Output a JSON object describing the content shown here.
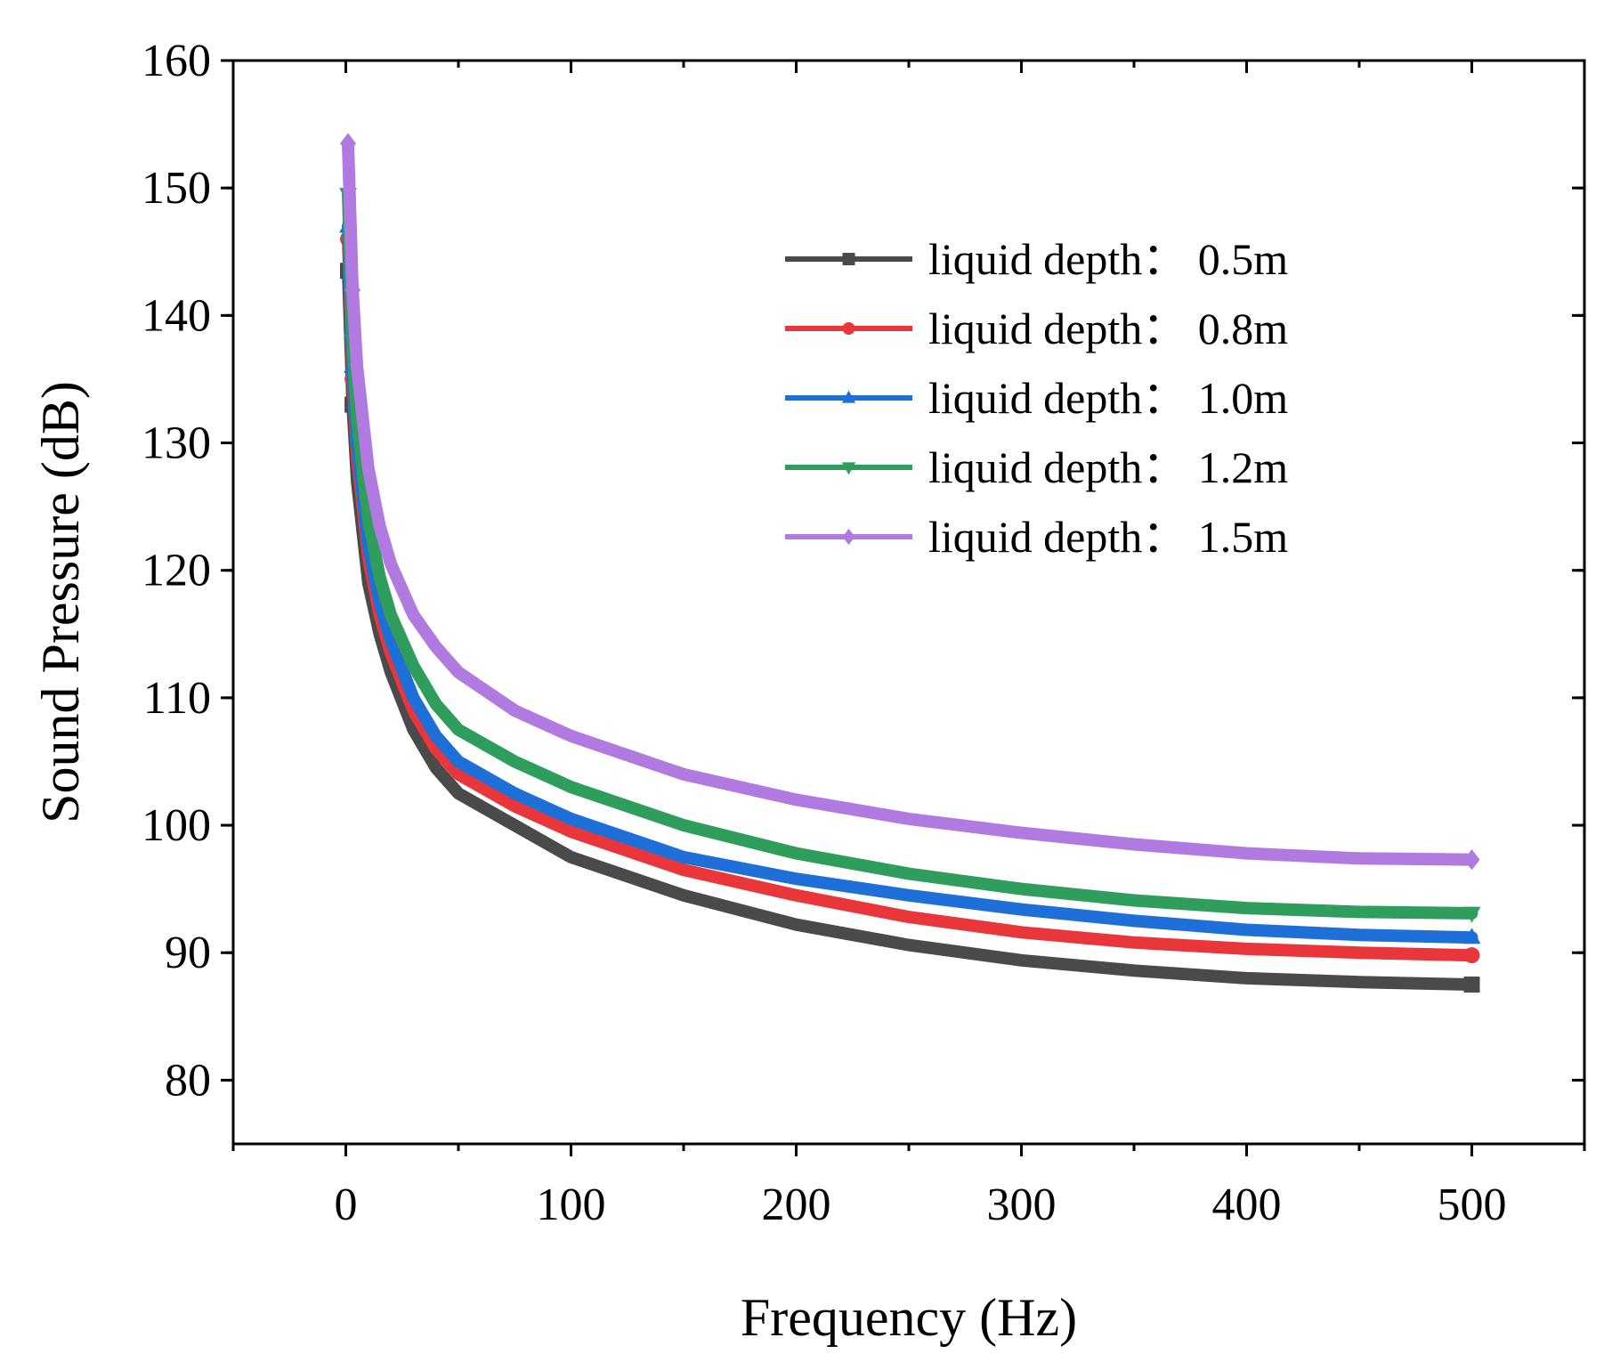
{
  "chart_data": {
    "type": "line",
    "title": "",
    "xlabel": "Frequency (Hz)",
    "ylabel": "Sound Pressure (dB)",
    "xlim": [
      -50,
      550
    ],
    "ylim": [
      75,
      160
    ],
    "xticks": [
      0,
      100,
      200,
      300,
      400,
      500
    ],
    "yticks": [
      80,
      90,
      100,
      110,
      120,
      130,
      140,
      150,
      160
    ],
    "xtick_labels": [
      "0",
      "100",
      "200",
      "300",
      "400",
      "500"
    ],
    "ytick_labels": [
      "80",
      "90",
      "100",
      "110",
      "120",
      "130",
      "140",
      "150",
      "160"
    ],
    "grid": false,
    "legend_position": "top-right",
    "x": [
      1,
      3,
      5,
      10,
      15,
      20,
      30,
      40,
      50,
      75,
      100,
      150,
      200,
      250,
      300,
      350,
      400,
      450,
      500
    ],
    "series": [
      {
        "name": "liquid depth： 0.5m",
        "color": "#4a4a4a",
        "marker": "square",
        "values": [
          143.5,
          133,
          127,
          119,
          115,
          112,
          107.5,
          104.5,
          102.5,
          100,
          97.5,
          94.5,
          92.2,
          90.6,
          89.4,
          88.6,
          88.0,
          87.7,
          87.5
        ]
      },
      {
        "name": "liquid depth： 0.8m",
        "color": "#e8363b",
        "marker": "circle",
        "values": [
          146,
          135,
          129,
          121,
          116.5,
          113.5,
          109,
          106,
          104,
          101.5,
          99.5,
          96.5,
          94.5,
          92.8,
          91.6,
          90.8,
          90.3,
          90.0,
          89.8
        ]
      },
      {
        "name": "liquid depth： 1.0m",
        "color": "#1f6fd9",
        "marker": "triangle-up",
        "values": [
          147,
          136,
          130,
          122,
          117.5,
          114.5,
          110,
          107,
          105,
          102.5,
          100.5,
          97.5,
          95.8,
          94.5,
          93.4,
          92.5,
          91.8,
          91.4,
          91.2
        ]
      },
      {
        "name": "liquid depth： 1.2m",
        "color": "#2f9e5c",
        "marker": "triangle-down",
        "values": [
          149.5,
          138,
          132,
          124,
          119.5,
          116.5,
          112.5,
          109.5,
          107.5,
          105,
          103,
          100,
          97.8,
          96.2,
          95.0,
          94.1,
          93.5,
          93.2,
          93.1
        ]
      },
      {
        "name": "liquid depth： 1.5m",
        "color": "#b07ae0",
        "marker": "diamond",
        "values": [
          153.5,
          142,
          136,
          128,
          123.5,
          120.5,
          116.5,
          114,
          112,
          109,
          107,
          104,
          102,
          100.5,
          99.4,
          98.5,
          97.8,
          97.4,
          97.3
        ]
      }
    ]
  }
}
